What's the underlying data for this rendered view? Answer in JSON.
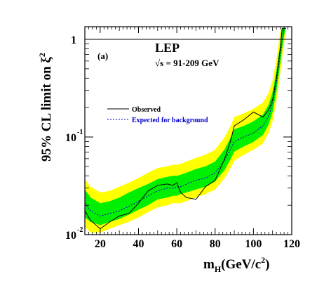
{
  "chart_data": {
    "type": "line",
    "title": "",
    "panel_label": "(a)",
    "experiment": "LEP",
    "energy_label": "√s = 91-209 GeV",
    "xlabel": {
      "main": "m",
      "sub": "H",
      "rest": "(GeV/c",
      "sup": "2",
      "close": ")"
    },
    "ylabel": {
      "main": "95% CL limit on ξ",
      "sup": "2"
    },
    "xlim": [
      12,
      120
    ],
    "ylim": [
      0.01,
      1.3
    ],
    "yscale": "log",
    "x_ticks": [
      20,
      40,
      60,
      80,
      100,
      120
    ],
    "y_ticks": [
      {
        "value": 1,
        "mantissa": "1",
        "exponent": ""
      },
      {
        "value": 0.1,
        "mantissa": "10",
        "exponent": "-1"
      },
      {
        "value": 0.01,
        "mantissa": "10",
        "exponent": "-2"
      }
    ],
    "reference_line": 1,
    "legend": {
      "placement": "center-left",
      "entries": [
        {
          "label": "Observed",
          "color": "#000000",
          "style": "solid"
        },
        {
          "label": "Expected for background",
          "color": "#0000cc",
          "style": "dotted"
        }
      ]
    },
    "colors": {
      "band_2sigma": "#ffff00",
      "band_1sigma": "#00ee00",
      "observed": "#000000",
      "expected": "#0000cc"
    },
    "x": [
      12,
      15,
      20,
      25,
      30,
      35,
      40,
      45,
      50,
      55,
      58,
      60,
      62,
      65,
      70,
      75,
      80,
      85,
      88,
      90,
      95,
      100,
      105,
      108,
      110,
      112,
      114,
      115,
      116,
      117
    ],
    "series": [
      {
        "name": "Observed",
        "values": [
          0.0175,
          0.014,
          0.0115,
          0.0135,
          0.0155,
          0.0165,
          0.021,
          0.028,
          0.032,
          0.033,
          0.032,
          0.034,
          0.027,
          0.024,
          0.023,
          0.031,
          0.036,
          0.06,
          0.09,
          0.13,
          0.15,
          0.18,
          0.16,
          0.19,
          0.24,
          0.4,
          0.8,
          1.3,
          1.3,
          1.3
        ]
      },
      {
        "name": "Expected for background",
        "values": [
          0.021,
          0.0175,
          0.0155,
          0.0165,
          0.0175,
          0.0195,
          0.022,
          0.025,
          0.028,
          0.03,
          0.03,
          0.031,
          0.031,
          0.033,
          0.036,
          0.038,
          0.043,
          0.058,
          0.075,
          0.09,
          0.1,
          0.11,
          0.13,
          0.165,
          0.22,
          0.36,
          0.7,
          1.0,
          1.3,
          1.3
        ]
      },
      {
        "name": "band_2sigma_low",
        "values": [
          0.012,
          0.0105,
          0.0105,
          0.0115,
          0.0125,
          0.0135,
          0.015,
          0.017,
          0.019,
          0.02,
          0.021,
          0.021,
          0.021,
          0.022,
          0.024,
          0.026,
          0.029,
          0.038,
          0.048,
          0.057,
          0.066,
          0.074,
          0.086,
          0.11,
          0.145,
          0.23,
          0.45,
          0.65,
          0.9,
          1.3
        ]
      },
      {
        "name": "band_1sigma_low",
        "values": [
          0.015,
          0.0135,
          0.0125,
          0.0135,
          0.0145,
          0.016,
          0.018,
          0.02,
          0.023,
          0.024,
          0.025,
          0.025,
          0.026,
          0.027,
          0.029,
          0.031,
          0.035,
          0.046,
          0.059,
          0.071,
          0.08,
          0.089,
          0.105,
          0.135,
          0.18,
          0.29,
          0.56,
          0.8,
          1.1,
          1.3
        ]
      },
      {
        "name": "band_1sigma_high",
        "values": [
          0.029,
          0.024,
          0.021,
          0.022,
          0.024,
          0.027,
          0.03,
          0.033,
          0.037,
          0.039,
          0.04,
          0.04,
          0.041,
          0.043,
          0.047,
          0.05,
          0.056,
          0.075,
          0.098,
          0.12,
          0.13,
          0.145,
          0.17,
          0.215,
          0.29,
          0.47,
          0.9,
          1.3,
          1.3,
          1.3
        ]
      },
      {
        "name": "band_2sigma_high",
        "values": [
          0.037,
          0.031,
          0.027,
          0.028,
          0.031,
          0.034,
          0.038,
          0.043,
          0.048,
          0.05,
          0.052,
          0.052,
          0.053,
          0.056,
          0.061,
          0.066,
          0.074,
          0.1,
          0.13,
          0.16,
          0.175,
          0.195,
          0.225,
          0.285,
          0.38,
          0.62,
          1.2,
          1.3,
          1.3,
          1.3
        ]
      }
    ]
  }
}
